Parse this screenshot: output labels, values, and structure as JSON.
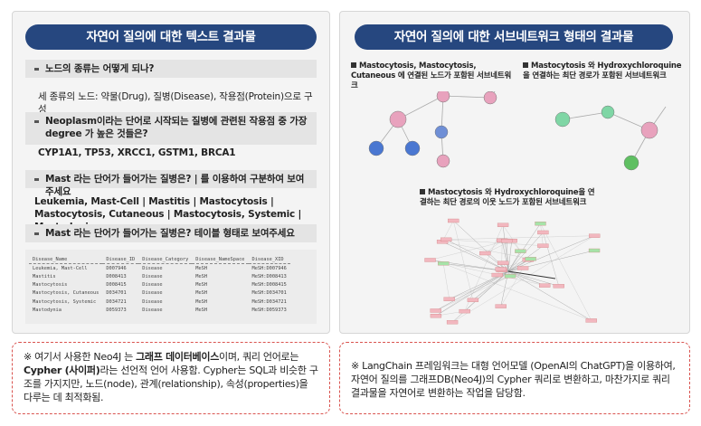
{
  "left_panel": {
    "title": "자연어 질의에 대한 텍스트 결과물",
    "items": [
      {
        "question": "노드의 종류는 어떻게 되나?",
        "answer": "세 종류의 노드: 약물(Drug), 질병(Disease), 작용점(Protein)으로 구성"
      },
      {
        "question": "Neoplasm이라는 단어로 시작되는 질병에 관련된 작용점 중 가장 degree 가 높은 것들은?",
        "answer": "CYP1A1, TP53, XRCC1, GSTM1, BRCA1"
      },
      {
        "question": "Mast 라는 단어가 들어가는 질병은? | 를 이용하여 구분하여 보여주세요",
        "answer": "Leukemia, Mast-Cell | Mastitis | Mastocytosis | Mastocytosis, Cutaneous | Mastocytosis, Systemic | Mastodynia"
      },
      {
        "question": "Mast 라는 단어가 들어가는 질병은? 테이블 형태로 보여주세요"
      }
    ],
    "table": {
      "header": [
        "Disease_Name",
        "Disease_ID",
        "Disease_Category",
        "Disease_NameSpace",
        "Disease_XID"
      ],
      "rows": [
        [
          "Leukemia, Mast-Cell",
          "D007946",
          "Disease",
          "MeSH",
          "MeSH:D007946"
        ],
        [
          "Mastitis",
          "D008413",
          "Disease",
          "MeSH",
          "MeSH:D008413"
        ],
        [
          "Mastocytosis",
          "D008415",
          "Disease",
          "MeSH",
          "MeSH:D008415"
        ],
        [
          "Mastocytosis, Cutaneous",
          "D034701",
          "Disease",
          "MeSH",
          "MeSH:D034701"
        ],
        [
          "Mastocytosis, Systemic",
          "D034721",
          "Disease",
          "MeSH",
          "MeSH:D034721"
        ],
        [
          "Mastodynia",
          "D059373",
          "Disease",
          "MeSH",
          "MeSH:D059373"
        ]
      ]
    }
  },
  "right_panel": {
    "title": "자연어 질의에 대한 서브네트워크 형태의 결과물",
    "graphs": [
      {
        "caption": "Mastocytosis, Mastocytosis, Cutaneous 에 연결된 노드가 포함된 서브네트워크"
      },
      {
        "caption": "Mastocytosis 와 Hydroxychloroquine 을 연결하는 최단 경로가 포함된 서브네트워크"
      },
      {
        "caption": "Mastocytosis 와 Hydroxychloroquine을 연결하는 최단 경로의 이웃 노드가 포함된 서브네트워크"
      }
    ]
  },
  "notes": [
    {
      "parts": [
        "※ 여기서 사용한 Neo4J 는 ",
        "그래프 데이터베이스",
        "이며, 쿼리 언어로는 ",
        "Cypher (사이퍼)",
        "라는 선언적 언어 사용함. Cypher는 SQL과 비슷한 구조를 가지지만, 노드(node), 관계(relationship), 속성(properties)을 다루는 데 최적화됨."
      ]
    },
    {
      "parts": [
        "※ LangChain 프레임워크는 대형 언어모델 (OpenAI의 ChatGPT)을 이용하여, 자연어 질의를 그래프DB(Neo4J)의 Cypher 쿼리로 변환하고, 마찬가지로 쿼리 결과물을 자연어로 변환하는 작업을 담당함."
      ]
    }
  ]
}
